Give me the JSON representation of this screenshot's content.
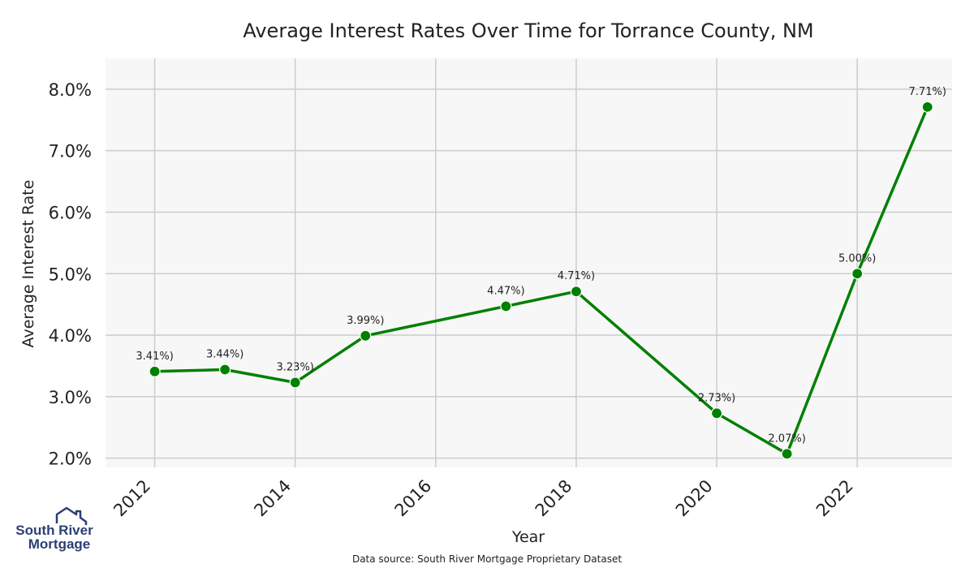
{
  "chart_data": {
    "type": "line",
    "title": "Average Interest Rates Over Time for Torrance County, NM",
    "xlabel": "Year",
    "ylabel": "Average Interest Rate",
    "x": [
      2012,
      2013,
      2014,
      2015,
      2017,
      2018,
      2020,
      2021,
      2022,
      2023
    ],
    "values": [
      3.41,
      3.44,
      3.23,
      3.99,
      4.47,
      4.71,
      2.73,
      2.07,
      5.0,
      7.71
    ],
    "data_labels": [
      "3.41%)",
      "3.44%)",
      "3.23%)",
      "3.99%)",
      "4.47%)",
      "4.71%)",
      "2.73%)",
      "2.07%)",
      "5.00%)",
      "7.71%)"
    ],
    "xticks": [
      2012,
      2014,
      2016,
      2018,
      2020,
      2022
    ],
    "xtick_labels": [
      "2012",
      "2014",
      "2016",
      "2018",
      "2020",
      "2022"
    ],
    "yticks": [
      2.0,
      3.0,
      4.0,
      5.0,
      6.0,
      7.0,
      8.0
    ],
    "ytick_labels": [
      "2.0%",
      "3.0%",
      "4.0%",
      "5.0%",
      "6.0%",
      "7.0%",
      "8.0%"
    ],
    "xlim": [
      2011.3,
      2023.35
    ],
    "ylim": [
      1.85,
      8.5
    ],
    "grid": true,
    "line_color": "#008000",
    "plot_background": "#f7f7f7",
    "grid_color": "#cccccc"
  },
  "footer": {
    "source": "Data source: South River Mortgage Proprietary Dataset"
  },
  "logo": {
    "line1": "South River",
    "line2": "Mortgage",
    "color": "#2b3f73"
  }
}
